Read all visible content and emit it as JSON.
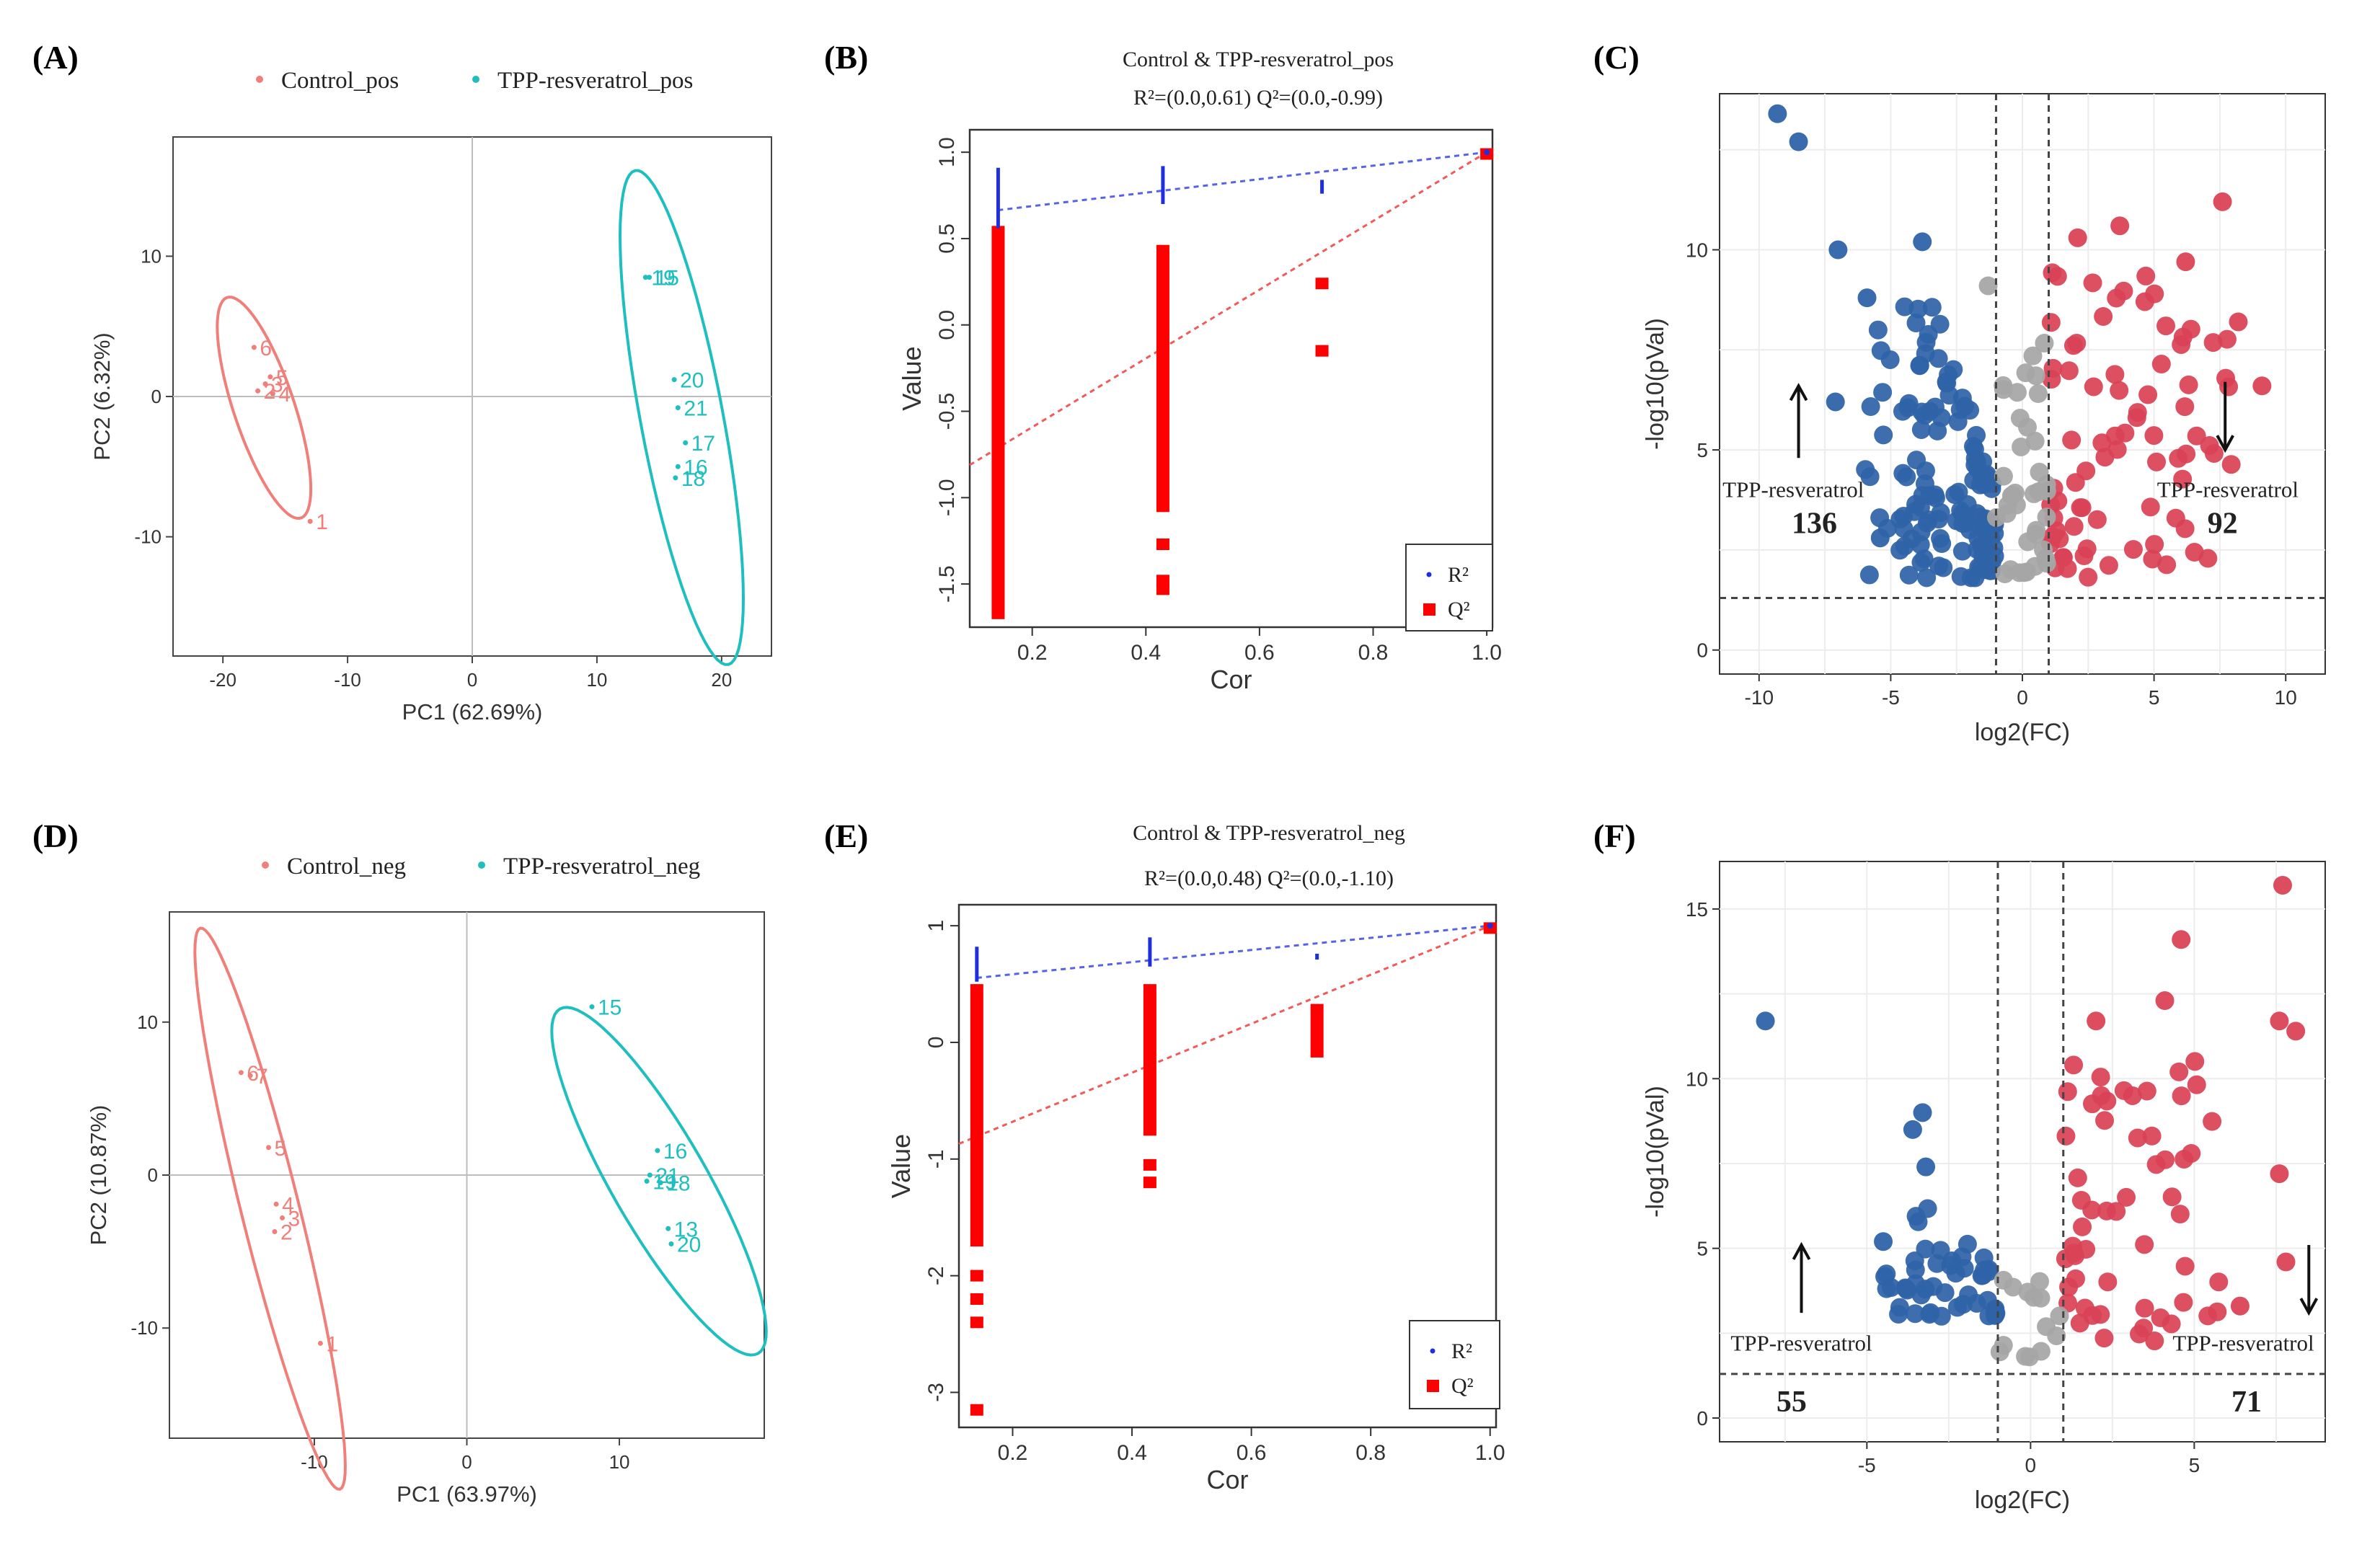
{
  "colors": {
    "control": "#f07f7a",
    "treated": "#1fbfbf",
    "up": "#2f63a8",
    "down": "#d94356",
    "ns": "#a6a6a6",
    "r2": "#1f2fe0",
    "q2": "#ff0000"
  },
  "panel_labels": [
    "(A)",
    "(B)",
    "(C)",
    "(D)",
    "(E)",
    "(F)"
  ],
  "chart_data": [
    {
      "id": "A",
      "type": "scatter",
      "subtype": "PCA",
      "legend": [
        {
          "name": "Control_pos",
          "color": "#f07f7a"
        },
        {
          "name": "TPP-resveratrol_pos",
          "color": "#1fbfbf"
        }
      ],
      "xlabel": "PC1 (62.69%)",
      "ylabel": "PC2 (6.32%)",
      "xlim": [
        -24,
        24
      ],
      "ylim": [
        -18.5,
        18.5
      ],
      "xticks": [
        -20,
        -10,
        0,
        10,
        20
      ],
      "yticks": [
        -10,
        0,
        10
      ],
      "series": [
        {
          "name": "Control_pos",
          "color": "#f07f7a",
          "points": [
            {
              "x": -17.5,
              "y": 3.5,
              "label": "6"
            },
            {
              "x": -16.2,
              "y": 1.4,
              "label": "5"
            },
            {
              "x": -16.6,
              "y": 0.9,
              "label": "3"
            },
            {
              "x": -17.2,
              "y": 0.4,
              "label": "2"
            },
            {
              "x": -16.0,
              "y": 0.2,
              "label": "4"
            },
            {
              "x": -13.0,
              "y": -8.9,
              "label": "1"
            }
          ],
          "ellipse": {
            "cx": -16.7,
            "cy": -0.8,
            "a": 8.4,
            "b": 2.4,
            "angle_deg": -69
          }
        },
        {
          "name": "TPP-resveratrol_pos",
          "color": "#1fbfbf",
          "points": [
            {
              "x": 13.9,
              "y": 8.5,
              "label": "19"
            },
            {
              "x": 14.2,
              "y": 8.5,
              "label": "15"
            },
            {
              "x": 16.2,
              "y": 1.2,
              "label": "20"
            },
            {
              "x": 16.5,
              "y": -0.8,
              "label": "21"
            },
            {
              "x": 17.1,
              "y": -3.3,
              "label": "17"
            },
            {
              "x": 16.5,
              "y": -5.0,
              "label": "16"
            },
            {
              "x": 16.3,
              "y": -5.8,
              "label": "18"
            }
          ],
          "ellipse": {
            "cx": 16.8,
            "cy": -1.5,
            "a": 18.0,
            "b": 3.3,
            "angle_deg": -78
          }
        }
      ]
    },
    {
      "id": "B",
      "type": "scatter",
      "subtype": "permutation-test",
      "title": "Control & TPP-resveratrol_pos",
      "subtitle": "R²=(0.0,0.61) Q²=(0.0,-0.99)",
      "xlabel": "Cor",
      "ylabel": "Value",
      "xlim": [
        0.09,
        1.01
      ],
      "ylim": [
        -1.75,
        1.13
      ],
      "xticks": [
        0.2,
        0.4,
        0.6,
        0.8,
        1.0
      ],
      "yticks": [
        -1.5,
        -1.0,
        -0.5,
        0.0,
        0.5,
        1.0
      ],
      "r2_columns": [
        {
          "x": 0.14,
          "ymin": 0.56,
          "ymax": 0.91
        },
        {
          "x": 0.43,
          "ymin": 0.7,
          "ymax": 0.92
        },
        {
          "x": 0.71,
          "ymin": 0.76,
          "ymax": 0.84
        }
      ],
      "r2_point": {
        "x": 1.0,
        "y": 1.0
      },
      "q2_columns": [
        {
          "x": 0.14,
          "ymin": -1.67,
          "ymax": 0.54
        },
        {
          "x": 0.43,
          "ymin": -1.05,
          "ymax": 0.43
        }
      ],
      "q2_points": [
        {
          "x": 0.43,
          "y": -1.27
        },
        {
          "x": 0.43,
          "y": -1.48
        },
        {
          "x": 0.43,
          "y": -1.53
        },
        {
          "x": 0.71,
          "y": 0.24
        },
        {
          "x": 0.71,
          "y": -0.15
        },
        {
          "x": 1.0,
          "y": 0.99
        }
      ],
      "r2_line": {
        "intercept": 0.61,
        "slope": 0.39
      },
      "q2_line": {
        "intercept": -0.99,
        "slope": 1.99
      },
      "legend": [
        {
          "name": "R²",
          "color": "#1f2fe0"
        },
        {
          "name": "Q²",
          "color": "#ff0000"
        }
      ]
    },
    {
      "id": "C",
      "type": "scatter",
      "subtype": "volcano",
      "xlabel": "log2(FC)",
      "ylabel": "-log10(pVal)",
      "xlim": [
        -11.5,
        11.5
      ],
      "ylim": [
        -0.6,
        13.9
      ],
      "xticks": [
        -10,
        -5,
        0,
        5,
        10
      ],
      "yticks": [
        0,
        5,
        10
      ],
      "fc_thresholds": [
        -1,
        1
      ],
      "p_threshold": 1.3,
      "annotations": [
        {
          "text": "TPP-resveratrol",
          "x": -8.7,
          "y": 4.0
        },
        {
          "text": "136",
          "x": -7.9,
          "y": 3.1
        },
        {
          "text": "TPP-resveratrol",
          "x": 7.8,
          "y": 4.0
        },
        {
          "text": "92",
          "x": 7.6,
          "y": 3.1
        }
      ],
      "arrows": [
        {
          "x": -8.5,
          "y1": 4.8,
          "y2": 6.6,
          "direction": "up"
        },
        {
          "x": 7.7,
          "y1": 6.7,
          "y2": 5.0,
          "direction": "down"
        }
      ],
      "counts": {
        "up": 136,
        "down": 92
      },
      "highlight_points": [
        {
          "x": -9.3,
          "y": 13.4,
          "group": "up"
        },
        {
          "x": -8.5,
          "y": 12.7,
          "group": "up"
        },
        {
          "x": -7.0,
          "y": 10.0,
          "group": "up"
        },
        {
          "x": -3.8,
          "y": 10.2,
          "group": "up"
        },
        {
          "x": -5.9,
          "y": 8.8,
          "group": "up"
        },
        {
          "x": -7.1,
          "y": 6.2,
          "group": "up"
        },
        {
          "x": -5.4,
          "y": 2.8,
          "group": "up"
        },
        {
          "x": -1.3,
          "y": 9.1,
          "group": "ns"
        },
        {
          "x": 7.6,
          "y": 11.2,
          "group": "down"
        },
        {
          "x": 9.1,
          "y": 6.6,
          "group": "down"
        },
        {
          "x": 8.2,
          "y": 8.2,
          "group": "down"
        },
        {
          "x": 3.7,
          "y": 10.6,
          "group": "down"
        },
        {
          "x": 2.1,
          "y": 10.3,
          "group": "down"
        },
        {
          "x": 6.2,
          "y": 9.7,
          "group": "down"
        }
      ],
      "bulk_regions": [
        {
          "group": "up",
          "n": 129,
          "x_range": [
            -6.0,
            -1.05
          ],
          "y_range": [
            1.8,
            8.6
          ]
        },
        {
          "group": "down",
          "n": 78,
          "x_range": [
            1.05,
            8.0
          ],
          "y_range": [
            1.8,
            9.5
          ]
        },
        {
          "group": "ns",
          "n": 38,
          "x_range": [
            -1.0,
            1.0
          ],
          "y_range": [
            1.9,
            8.0
          ]
        }
      ]
    },
    {
      "id": "D",
      "type": "scatter",
      "subtype": "PCA",
      "legend": [
        {
          "name": "Control_neg",
          "color": "#f07f7a"
        },
        {
          "name": "TPP-resveratrol_neg",
          "color": "#1fbfbf"
        }
      ],
      "xlabel": "PC1 (63.97%)",
      "ylabel": "PC2 (10.87%)",
      "xlim": [
        -19.5,
        19.5
      ],
      "ylim": [
        -17.2,
        17.2
      ],
      "xticks": [
        -10,
        0,
        10
      ],
      "yticks": [
        -10,
        0,
        10
      ],
      "series": [
        {
          "name": "Control_neg",
          "color": "#f07f7a",
          "points": [
            {
              "x": -14.8,
              "y": 6.7,
              "label": "6"
            },
            {
              "x": -14.2,
              "y": 6.5,
              "label": "7"
            },
            {
              "x": -13.0,
              "y": 1.8,
              "label": "5"
            },
            {
              "x": -12.5,
              "y": -1.9,
              "label": "4"
            },
            {
              "x": -12.1,
              "y": -2.8,
              "label": "3"
            },
            {
              "x": -12.6,
              "y": -3.7,
              "label": "2"
            },
            {
              "x": -9.6,
              "y": -11.0,
              "label": "1"
            }
          ],
          "ellipse": {
            "cx": -12.9,
            "cy": -2.2,
            "a": 18.9,
            "b": 1.9,
            "angle_deg": -76
          }
        },
        {
          "name": "TPP-resveratrol_neg",
          "color": "#1fbfbf",
          "points": [
            {
              "x": 8.2,
              "y": 11.0,
              "label": "15"
            },
            {
              "x": 12.5,
              "y": 1.6,
              "label": "16"
            },
            {
              "x": 12.0,
              "y": 0.0,
              "label": "21"
            },
            {
              "x": 11.8,
              "y": -0.4,
              "label": "19"
            },
            {
              "x": 12.7,
              "y": -0.5,
              "label": "18"
            },
            {
              "x": 13.2,
              "y": -3.5,
              "label": "13"
            },
            {
              "x": 13.4,
              "y": -4.5,
              "label": "20"
            }
          ],
          "ellipse": {
            "cx": 12.6,
            "cy": -0.4,
            "a": 13.0,
            "b": 3.1,
            "angle_deg": -60
          }
        }
      ]
    },
    {
      "id": "E",
      "type": "scatter",
      "subtype": "permutation-test",
      "title": "Control & TPP-resveratrol_neg",
      "subtitle": "R²=(0.0,0.48) Q²=(0.0,-1.10)",
      "xlabel": "Cor",
      "ylabel": "Value",
      "xlim": [
        0.11,
        1.01
      ],
      "ylim": [
        -3.3,
        1.18
      ],
      "xticks": [
        0.2,
        0.4,
        0.6,
        0.8,
        1.0
      ],
      "yticks": [
        -3,
        -2,
        -1,
        0,
        1
      ],
      "r2_columns": [
        {
          "x": 0.14,
          "ymin": 0.52,
          "ymax": 0.82
        },
        {
          "x": 0.43,
          "ymin": 0.65,
          "ymax": 0.9
        },
        {
          "x": 0.71,
          "ymin": 0.71,
          "ymax": 0.76
        }
      ],
      "r2_point": {
        "x": 1.0,
        "y": 1.0
      },
      "q2_columns": [
        {
          "x": 0.14,
          "ymin": -1.7,
          "ymax": 0.45
        },
        {
          "x": 0.43,
          "ymin": -0.75,
          "ymax": 0.45
        },
        {
          "x": 0.71,
          "ymin": -0.08,
          "ymax": 0.28
        }
      ],
      "q2_points": [
        {
          "x": 0.14,
          "y": -2.0
        },
        {
          "x": 0.14,
          "y": -2.2
        },
        {
          "x": 0.14,
          "y": -2.4
        },
        {
          "x": 0.14,
          "y": -3.15
        },
        {
          "x": 0.43,
          "y": -1.05
        },
        {
          "x": 0.43,
          "y": -1.2
        },
        {
          "x": 1.0,
          "y": 0.98
        }
      ],
      "r2_line": {
        "intercept": 0.48,
        "slope": 0.52
      },
      "q2_line": {
        "intercept": -1.1,
        "slope": 2.1
      },
      "legend": [
        {
          "name": "R²",
          "color": "#1f2fe0"
        },
        {
          "name": "Q²",
          "color": "#ff0000"
        }
      ]
    },
    {
      "id": "F",
      "type": "scatter",
      "subtype": "volcano",
      "xlabel": "log2(FC)",
      "ylabel": "-log10(pVal)",
      "xlim": [
        -9.5,
        9.0
      ],
      "ylim": [
        -0.7,
        16.4
      ],
      "xticks": [
        -5,
        0,
        5
      ],
      "yticks": [
        0,
        5,
        10,
        15
      ],
      "fc_thresholds": [
        -1,
        1
      ],
      "p_threshold": 1.3,
      "annotations": [
        {
          "text": "TPP-resveratrol",
          "x": -7.0,
          "y": 2.2
        },
        {
          "text": "55",
          "x": -7.3,
          "y": 0.4
        },
        {
          "text": "TPP-resveratrol",
          "x": 6.5,
          "y": 2.2
        },
        {
          "text": "71",
          "x": 6.6,
          "y": 0.4
        }
      ],
      "arrows": [
        {
          "x": -7.0,
          "y1": 3.1,
          "y2": 5.1,
          "direction": "up"
        },
        {
          "x": 8.5,
          "y1": 5.1,
          "y2": 3.1,
          "direction": "down"
        }
      ],
      "counts": {
        "up": 55,
        "down": 71
      },
      "highlight_points": [
        {
          "x": -8.1,
          "y": 11.7,
          "group": "up"
        },
        {
          "x": -3.3,
          "y": 9.0,
          "group": "up"
        },
        {
          "x": -3.6,
          "y": 8.5,
          "group": "up"
        },
        {
          "x": -3.2,
          "y": 7.4,
          "group": "up"
        },
        {
          "x": -4.5,
          "y": 5.2,
          "group": "up"
        },
        {
          "x": 7.7,
          "y": 15.7,
          "group": "down"
        },
        {
          "x": 4.6,
          "y": 14.1,
          "group": "down"
        },
        {
          "x": 4.1,
          "y": 12.3,
          "group": "down"
        },
        {
          "x": 7.6,
          "y": 11.7,
          "group": "down"
        },
        {
          "x": 8.1,
          "y": 11.4,
          "group": "down"
        },
        {
          "x": 7.6,
          "y": 7.2,
          "group": "down"
        },
        {
          "x": 7.8,
          "y": 4.6,
          "group": "down"
        },
        {
          "x": 6.4,
          "y": 3.3,
          "group": "down"
        },
        {
          "x": 2.0,
          "y": 11.7,
          "group": "down"
        }
      ],
      "bulk_regions": [
        {
          "group": "up",
          "n": 50,
          "x_range": [
            -4.5,
            -1.05
          ],
          "y_range": [
            3.0,
            6.8
          ]
        },
        {
          "group": "down",
          "n": 57,
          "x_range": [
            1.05,
            5.8
          ],
          "y_range": [
            1.8,
            10.6
          ]
        },
        {
          "group": "ns",
          "n": 14,
          "x_range": [
            -1.0,
            1.0
          ],
          "y_range": [
            1.8,
            4.2
          ]
        }
      ]
    }
  ]
}
